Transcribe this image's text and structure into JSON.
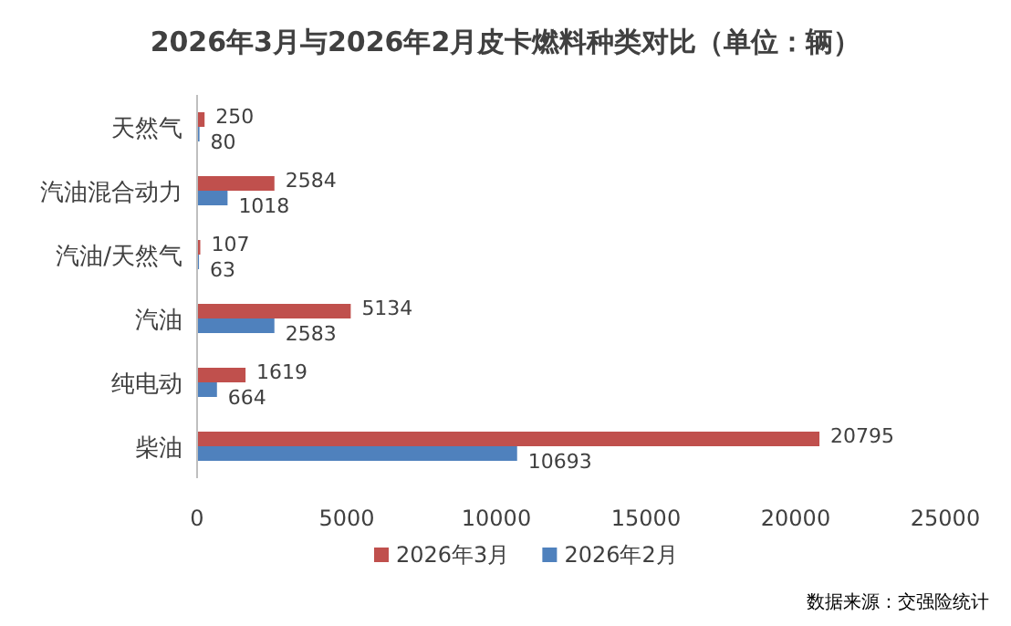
{
  "chart_data": {
    "type": "bar",
    "orientation": "horizontal",
    "title": "2026年3月与2026年2月皮卡燃料种类对比（单位：辆）",
    "categories": [
      "天然气",
      "汽油混合动力",
      "汽油/天然气",
      "汽油",
      "纯电动",
      "柴油"
    ],
    "series": [
      {
        "name": "2026年3月",
        "color": "#c0504d",
        "values": [
          250,
          2584,
          107,
          5134,
          1619,
          20795
        ]
      },
      {
        "name": "2026年2月",
        "color": "#4f81bd",
        "values": [
          80,
          1018,
          63,
          2583,
          664,
          10693
        ]
      }
    ],
    "xlim": [
      0,
      25000
    ],
    "xticks": [
      0,
      5000,
      10000,
      15000,
      20000,
      25000
    ],
    "data_labels": true,
    "legend": "bottom",
    "grid": false,
    "annotations": [
      "数据来源：交强险统计"
    ]
  }
}
